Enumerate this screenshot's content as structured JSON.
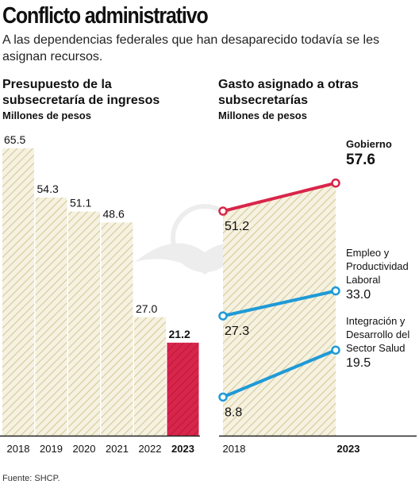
{
  "header": {
    "title": "Conflicto administrativo",
    "subtitle": "A las dependencias federales que han desaparecido todavía se les asignan recursos."
  },
  "source": "Fuente: SHCP.",
  "colors": {
    "bar_hatch": "#d4c89a",
    "bar_fill": "#f6f2e1",
    "highlight": "#d8254a",
    "line_gobierno": "#d8254a",
    "line_other": "#1f9ad6",
    "axis": "#222222"
  },
  "chart_data": [
    {
      "type": "bar",
      "title": "Presupuesto de la subsecretaría de ingresos",
      "unit": "Millones de pesos",
      "categories": [
        "2018",
        "2019",
        "2020",
        "2021",
        "2022",
        "2023"
      ],
      "values": [
        65.5,
        54.3,
        51.1,
        48.6,
        27.0,
        21.2
      ],
      "value_labels": [
        "65.5",
        "54.3",
        "51.1",
        "48.6",
        "27.0",
        "21.2"
      ],
      "highlight_category": "2023",
      "ylim": [
        0,
        65.5
      ]
    },
    {
      "type": "line",
      "title": "Gasto asignado a otras subsecretarías",
      "unit": "Millones de pesos",
      "x": [
        "2018",
        "2023"
      ],
      "highlight_category": "2023",
      "ylim": [
        0,
        65.5
      ],
      "series": [
        {
          "name": "Gobierno",
          "values": [
            51.2,
            57.6
          ],
          "value_labels": [
            "51.2",
            "57.6"
          ],
          "color": "#d8254a",
          "name_lines": [
            "Gobierno"
          ]
        },
        {
          "name": "Empleo y Productividad Laboral",
          "values": [
            27.3,
            33.0
          ],
          "value_labels": [
            "27.3",
            "33.0"
          ],
          "color": "#1f9ad6",
          "name_lines": [
            "Empleo y",
            "Productividad",
            "Laboral"
          ]
        },
        {
          "name": "Integración y Desarrollo del Sector Salud",
          "values": [
            8.8,
            19.5
          ],
          "value_labels": [
            "8.8",
            "19.5"
          ],
          "color": "#1f9ad6",
          "name_lines": [
            "Integración y",
            "Desarrollo del",
            "Sector Salud"
          ]
        }
      ]
    }
  ]
}
